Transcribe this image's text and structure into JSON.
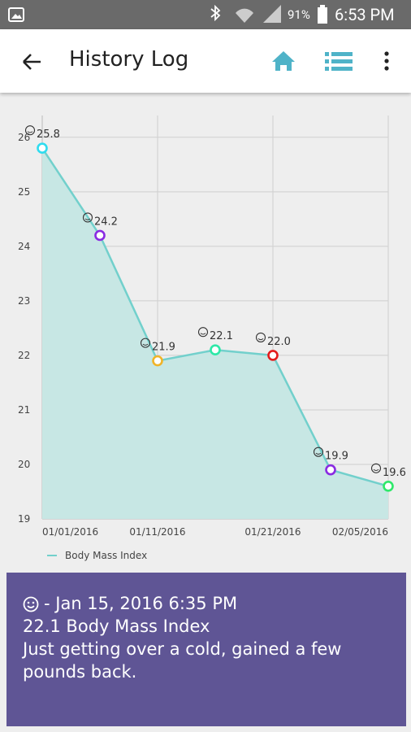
{
  "status_bar": {
    "battery": "91%",
    "time": "6:53 PM"
  },
  "app_bar": {
    "title": "History Log"
  },
  "chart_data": {
    "type": "area",
    "categories": [
      "01/01/2016",
      null,
      "01/11/2016",
      null,
      "01/21/2016",
      null,
      "02/05/2016"
    ],
    "series": [
      {
        "name": "Body Mass Index",
        "color": "#72d0cc",
        "fill": "#c7e7e4",
        "values": [
          25.8,
          24.2,
          21.9,
          22.1,
          22.0,
          19.9,
          19.6
        ],
        "value_labels": [
          "25.8",
          "24.2",
          "21.9",
          "22.1",
          "22.0",
          "19.9",
          "19.6"
        ],
        "point_colors": [
          "#2fdcef",
          "#8a2be2",
          "#f0b428",
          "#2ee8a8",
          "#e31c1c",
          "#8a2be2",
          "#2fe86a"
        ]
      }
    ],
    "ylim": [
      19,
      26.4
    ],
    "yticks": [
      19,
      20,
      21,
      22,
      23,
      24,
      25,
      26
    ],
    "grid": true,
    "legend": "bottom-left"
  },
  "detail": {
    "header": "- Jan 15, 2016 6:35 PM",
    "value_line": "22.1 Body Mass Index",
    "note": "Just getting over a cold, gained a few pounds back."
  }
}
